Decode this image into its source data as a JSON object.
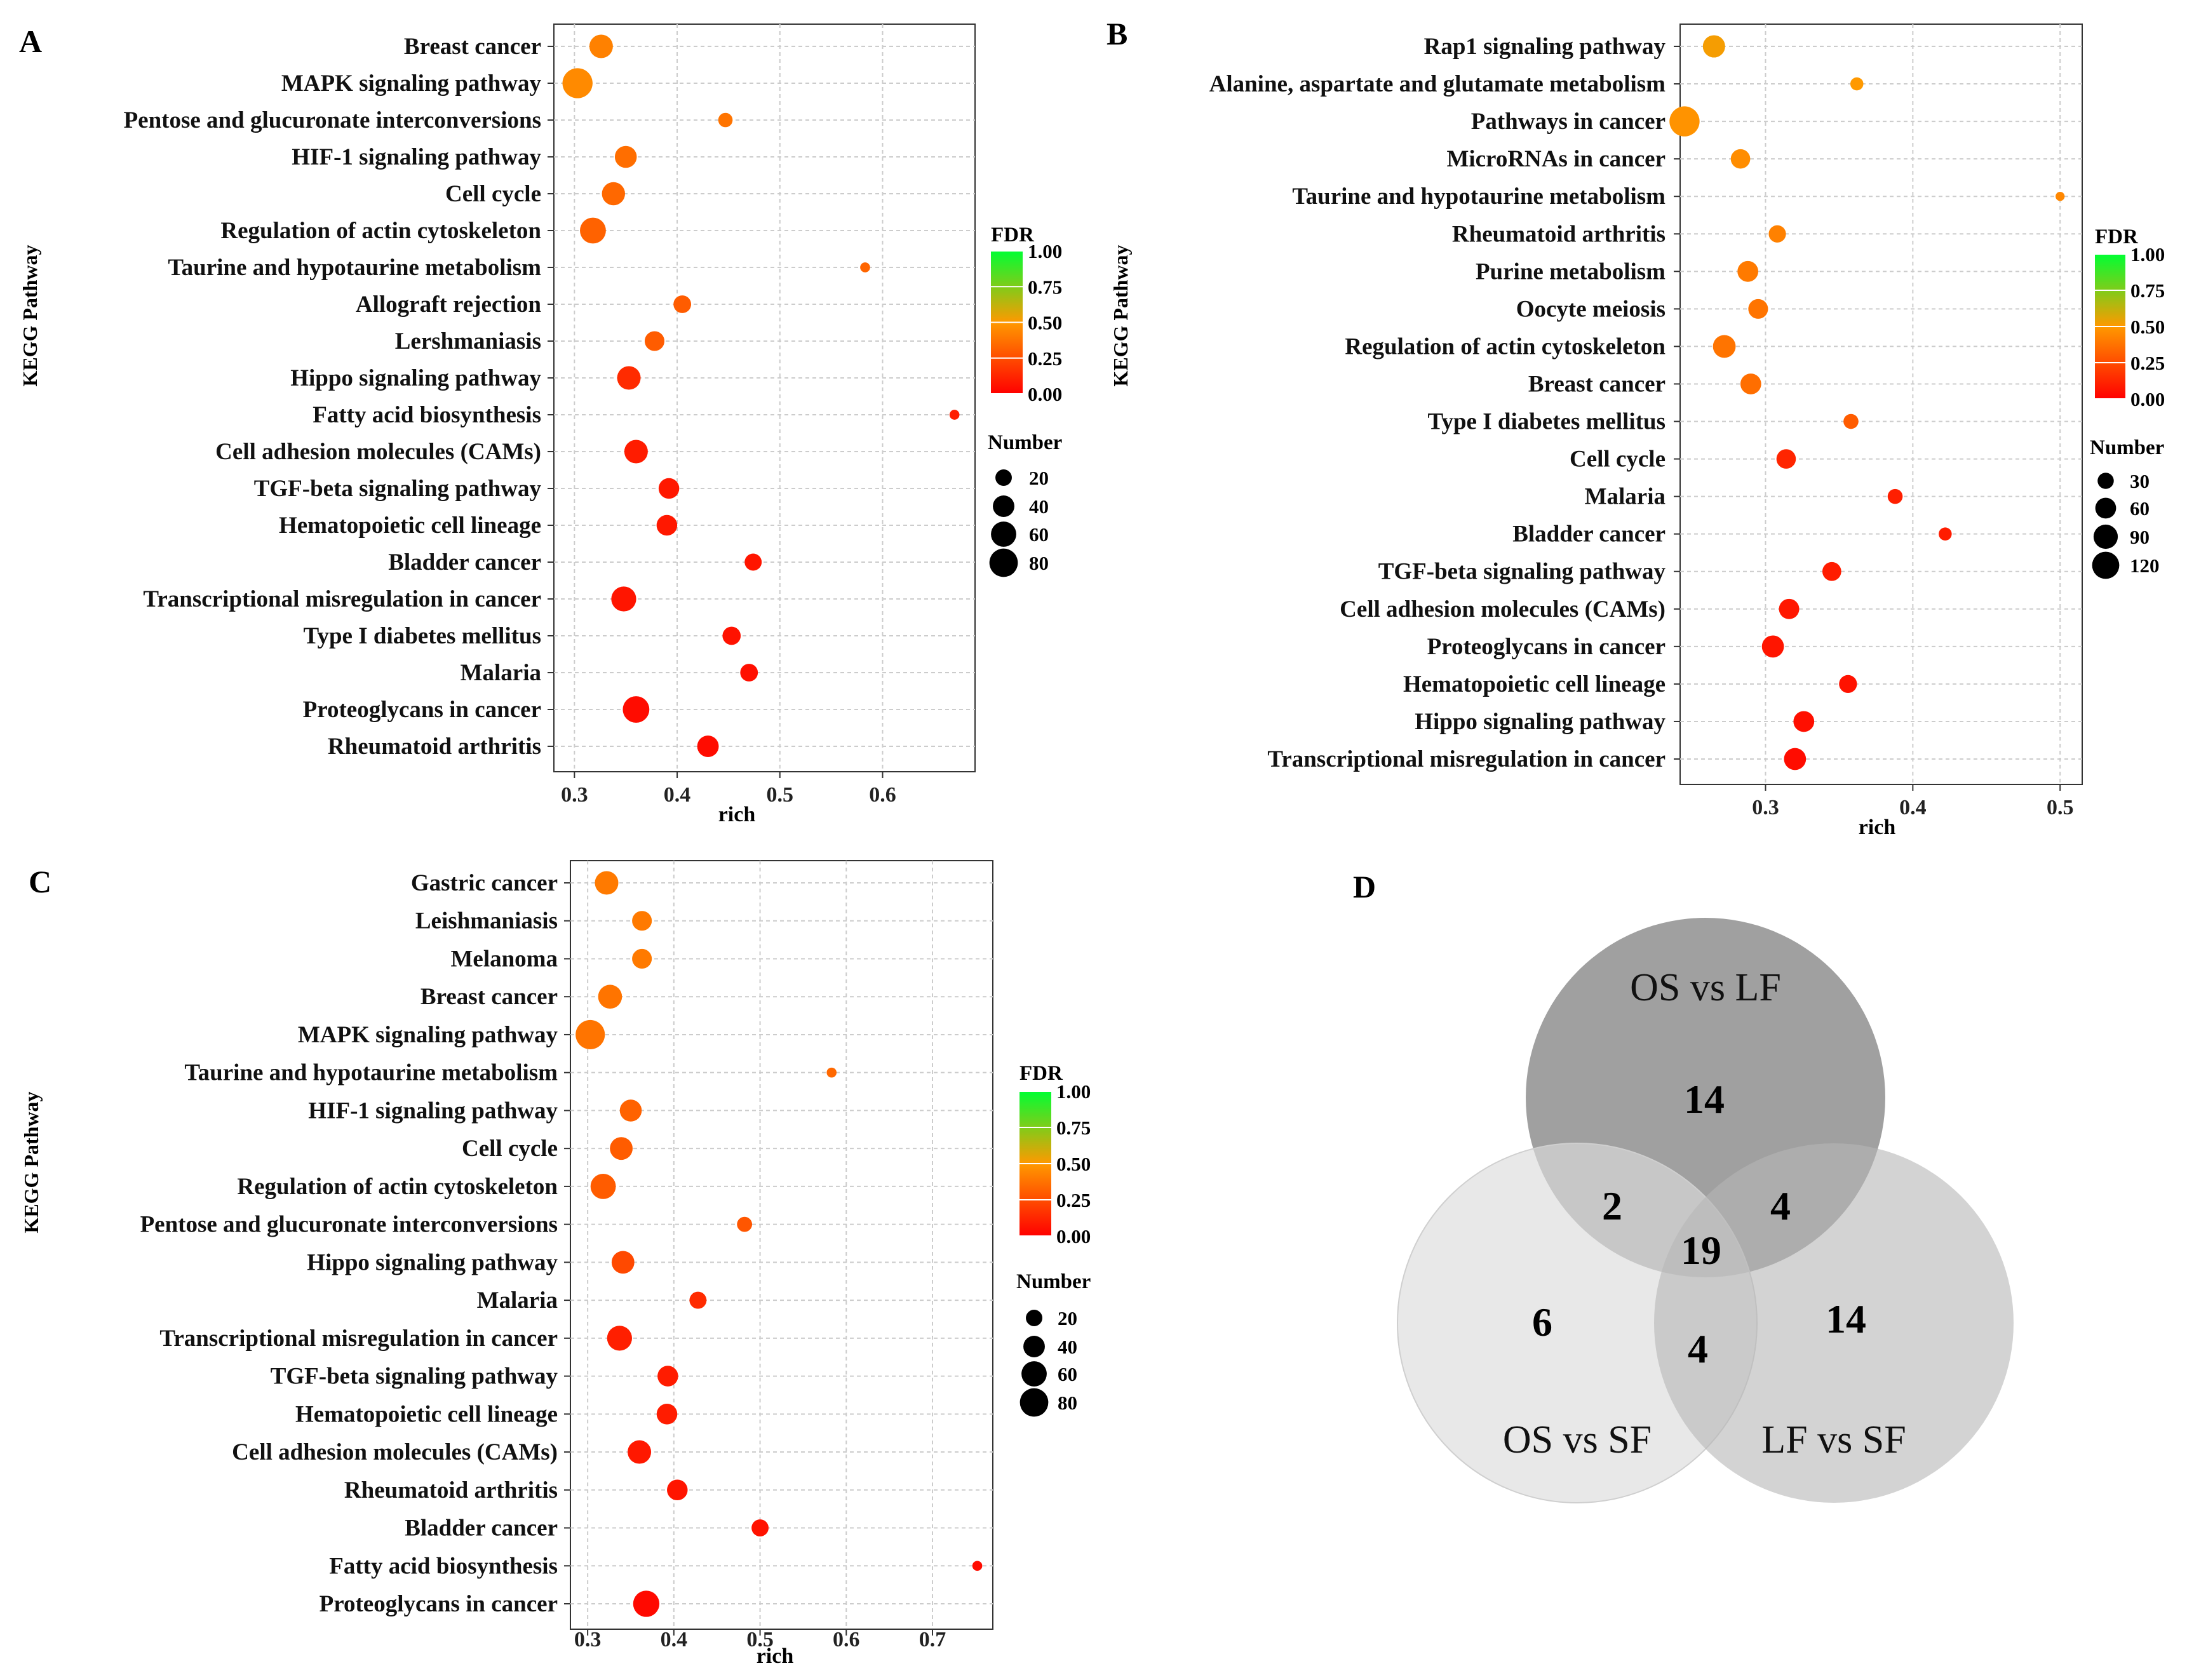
{
  "figure": {
    "panel_labels": [
      "A",
      "B",
      "C",
      "D"
    ]
  },
  "chart_data": [
    {
      "panel": "A",
      "type": "scatter",
      "xlabel": "rich",
      "ylabel": "KEGG Pathway",
      "xlim": [
        0.28,
        0.69
      ],
      "xticks": [
        "0.3",
        "0.4",
        "0.5",
        "0.6"
      ],
      "xtick_values": [
        0.3,
        0.4,
        0.5,
        0.6
      ],
      "grid": true,
      "color_legend": {
        "title": "FDR",
        "ticks": [
          "1.00",
          "0.75",
          "0.50",
          "0.25",
          "0.00"
        ]
      },
      "size_legend": {
        "title": "Number",
        "labels": [
          "20",
          "40",
          "60",
          "80"
        ],
        "values": [
          20,
          40,
          60,
          80
        ]
      },
      "count_range": [
        4,
        95
      ],
      "points": [
        {
          "pathway": "Breast cancer",
          "rich": 0.326,
          "number": 50,
          "fdr": 0.42
        },
        {
          "pathway": "MAPK signaling pathway",
          "rich": 0.303,
          "number": 92,
          "fdr": 0.45
        },
        {
          "pathway": "Pentose and glucuronate interconversions",
          "rich": 0.447,
          "number": 14,
          "fdr": 0.38
        },
        {
          "pathway": "HIF-1 signaling pathway",
          "rich": 0.35,
          "number": 42,
          "fdr": 0.36
        },
        {
          "pathway": "Cell cycle",
          "rich": 0.338,
          "number": 48,
          "fdr": 0.34
        },
        {
          "pathway": "Regulation of actin cytoskeleton",
          "rich": 0.318,
          "number": 64,
          "fdr": 0.32
        },
        {
          "pathway": "Taurine and hypotaurine metabolism",
          "rich": 0.583,
          "number": 6,
          "fdr": 0.33
        },
        {
          "pathway": "Allograft rejection",
          "rich": 0.405,
          "number": 24,
          "fdr": 0.3
        },
        {
          "pathway": "Lershmaniasis",
          "rich": 0.378,
          "number": 32,
          "fdr": 0.3
        },
        {
          "pathway": "Hippo signaling pathway",
          "rich": 0.353,
          "number": 50,
          "fdr": 0.14
        },
        {
          "pathway": "Fatty acid biosynthesis",
          "rich": 0.67,
          "number": 6,
          "fdr": 0.1
        },
        {
          "pathway": "Cell adhesion molecules (CAMs)",
          "rich": 0.36,
          "number": 50,
          "fdr": 0.09
        },
        {
          "pathway": "TGF-beta signaling pathway",
          "rich": 0.392,
          "number": 36,
          "fdr": 0.08
        },
        {
          "pathway": "Hematopoietic cell lineage",
          "rich": 0.39,
          "number": 36,
          "fdr": 0.08
        },
        {
          "pathway": "Bladder cancer",
          "rich": 0.474,
          "number": 22,
          "fdr": 0.07
        },
        {
          "pathway": "Transcriptional misregulation in cancer",
          "rich": 0.348,
          "number": 58,
          "fdr": 0.07
        },
        {
          "pathway": "Type I diabetes mellitus",
          "rich": 0.453,
          "number": 26,
          "fdr": 0.06
        },
        {
          "pathway": "Malaria",
          "rich": 0.47,
          "number": 24,
          "fdr": 0.05
        },
        {
          "pathway": "Proteoglycans in cancer",
          "rich": 0.36,
          "number": 68,
          "fdr": 0.04
        },
        {
          "pathway": "Rheumatoid arthritis",
          "rich": 0.43,
          "number": 40,
          "fdr": 0.04
        }
      ]
    },
    {
      "panel": "B",
      "type": "scatter",
      "xlabel": "rich",
      "ylabel": "KEGG Pathway",
      "xlim": [
        0.242,
        0.515
      ],
      "xticks": [
        "0.3",
        "0.4",
        "0.5"
      ],
      "xtick_values": [
        0.3,
        0.4,
        0.5
      ],
      "grid": true,
      "color_legend": {
        "title": "FDR",
        "ticks": [
          "1.00",
          "0.75",
          "0.50",
          "0.25",
          "0.00"
        ]
      },
      "size_legend": {
        "title": "Number",
        "labels": [
          "30",
          "60",
          "90",
          "120"
        ],
        "values": [
          30,
          60,
          90,
          120
        ]
      },
      "count_range": [
        4,
        160
      ],
      "points": [
        {
          "pathway": "Rap1 signaling pathway",
          "rich": 0.265,
          "number": 72,
          "fdr": 0.52
        },
        {
          "pathway": "Alanine, aspartate and glutamate metabolism",
          "rich": 0.362,
          "number": 16,
          "fdr": 0.5
        },
        {
          "pathway": "Pathways in cancer",
          "rich": 0.245,
          "number": 155,
          "fdr": 0.48
        },
        {
          "pathway": "MicroRNAs in cancer",
          "rich": 0.283,
          "number": 50,
          "fdr": 0.46
        },
        {
          "pathway": "Taurine and hypotaurine metabolism",
          "rich": 0.5,
          "number": 6,
          "fdr": 0.44
        },
        {
          "pathway": "Rheumatoid arthritis",
          "rich": 0.308,
          "number": 36,
          "fdr": 0.42
        },
        {
          "pathway": "Purine metabolism",
          "rich": 0.288,
          "number": 60,
          "fdr": 0.4
        },
        {
          "pathway": "Oocyte meiosis",
          "rich": 0.295,
          "number": 52,
          "fdr": 0.38
        },
        {
          "pathway": "Regulation of actin cytoskeleton",
          "rich": 0.272,
          "number": 76,
          "fdr": 0.38
        },
        {
          "pathway": "Breast cancer",
          "rich": 0.29,
          "number": 60,
          "fdr": 0.36
        },
        {
          "pathway": "Type I diabetes mellitus",
          "rich": 0.358,
          "number": 24,
          "fdr": 0.3
        },
        {
          "pathway": "Cell cycle",
          "rich": 0.314,
          "number": 50,
          "fdr": 0.12
        },
        {
          "pathway": "Malaria",
          "rich": 0.388,
          "number": 24,
          "fdr": 0.1
        },
        {
          "pathway": "Bladder cancer",
          "rich": 0.422,
          "number": 16,
          "fdr": 0.09
        },
        {
          "pathway": "TGF-beta signaling pathway",
          "rich": 0.345,
          "number": 46,
          "fdr": 0.09
        },
        {
          "pathway": "Cell adhesion molecules (CAMs)",
          "rich": 0.316,
          "number": 56,
          "fdr": 0.08
        },
        {
          "pathway": "Proteoglycans in cancer",
          "rich": 0.305,
          "number": 70,
          "fdr": 0.07
        },
        {
          "pathway": "Hematopoietic cell lineage",
          "rich": 0.356,
          "number": 40,
          "fdr": 0.06
        },
        {
          "pathway": "Hippo signaling pathway",
          "rich": 0.326,
          "number": 60,
          "fdr": 0.05
        },
        {
          "pathway": "Transcriptional misregulation in cancer",
          "rich": 0.32,
          "number": 70,
          "fdr": 0.04
        }
      ]
    },
    {
      "panel": "C",
      "type": "scatter",
      "xlabel": "rich",
      "ylabel": "KEGG Pathway",
      "xlim": [
        0.28,
        0.77
      ],
      "xticks": [
        "0.3",
        "0.4",
        "0.5",
        "0.6",
        "0.7"
      ],
      "xtick_values": [
        0.3,
        0.4,
        0.5,
        0.6,
        0.7
      ],
      "grid": true,
      "color_legend": {
        "title": "FDR",
        "ticks": [
          "1.00",
          "0.75",
          "0.50",
          "0.25",
          "0.00"
        ]
      },
      "size_legend": {
        "title": "Number",
        "labels": [
          "20",
          "40",
          "60",
          "80"
        ],
        "values": [
          20,
          40,
          60,
          80
        ]
      },
      "count_range": [
        4,
        95
      ],
      "points": [
        {
          "pathway": "Gastric cancer",
          "rich": 0.322,
          "number": 50,
          "fdr": 0.4
        },
        {
          "pathway": "Leishmaniasis",
          "rich": 0.363,
          "number": 32,
          "fdr": 0.4
        },
        {
          "pathway": "Melanoma",
          "rich": 0.363,
          "number": 32,
          "fdr": 0.4
        },
        {
          "pathway": "Breast cancer",
          "rich": 0.326,
          "number": 52,
          "fdr": 0.38
        },
        {
          "pathway": "MAPK signaling pathway",
          "rich": 0.303,
          "number": 86,
          "fdr": 0.38
        },
        {
          "pathway": "Taurine and hypotaurine metabolism",
          "rich": 0.583,
          "number": 6,
          "fdr": 0.34
        },
        {
          "pathway": "HIF-1 signaling pathway",
          "rich": 0.35,
          "number": 42,
          "fdr": 0.32
        },
        {
          "pathway": "Cell cycle",
          "rich": 0.339,
          "number": 46,
          "fdr": 0.3
        },
        {
          "pathway": "Regulation of actin cytoskeleton",
          "rich": 0.318,
          "number": 60,
          "fdr": 0.3
        },
        {
          "pathway": "Pentose and glucuronate interconversions",
          "rich": 0.482,
          "number": 16,
          "fdr": 0.28
        },
        {
          "pathway": "Hippo signaling pathway",
          "rich": 0.341,
          "number": 46,
          "fdr": 0.24
        },
        {
          "pathway": "Malaria",
          "rich": 0.428,
          "number": 22,
          "fdr": 0.14
        },
        {
          "pathway": "Transcriptional misregulation in cancer",
          "rich": 0.337,
          "number": 58,
          "fdr": 0.1
        },
        {
          "pathway": "TGF-beta signaling pathway",
          "rich": 0.393,
          "number": 36,
          "fdr": 0.09
        },
        {
          "pathway": "Hematopoietic cell lineage",
          "rich": 0.392,
          "number": 36,
          "fdr": 0.09
        },
        {
          "pathway": "Cell adhesion molecules (CAMs)",
          "rich": 0.36,
          "number": 50,
          "fdr": 0.08
        },
        {
          "pathway": "Rheumatoid arthritis",
          "rich": 0.404,
          "number": 36,
          "fdr": 0.07
        },
        {
          "pathway": "Bladder cancer",
          "rich": 0.5,
          "number": 22,
          "fdr": 0.06
        },
        {
          "pathway": "Fatty acid biosynthesis",
          "rich": 0.752,
          "number": 6,
          "fdr": 0.04
        },
        {
          "pathway": "Proteoglycans in cancer",
          "rich": 0.368,
          "number": 66,
          "fdr": 0.03
        }
      ]
    }
  ],
  "venn": {
    "sets": [
      "OS vs LF",
      "OS vs SF",
      "LF vs SF"
    ],
    "set_colors": [
      "#808080",
      "#e0e0e0",
      "#bdbdbd"
    ],
    "values": {
      "os_lf_only": "14",
      "os_sf_only": "6",
      "lf_sf_only": "14",
      "os_lf_and_os_sf": "2",
      "os_lf_and_lf_sf": "4",
      "os_sf_and_lf_sf": "4",
      "all_three": "19"
    }
  }
}
